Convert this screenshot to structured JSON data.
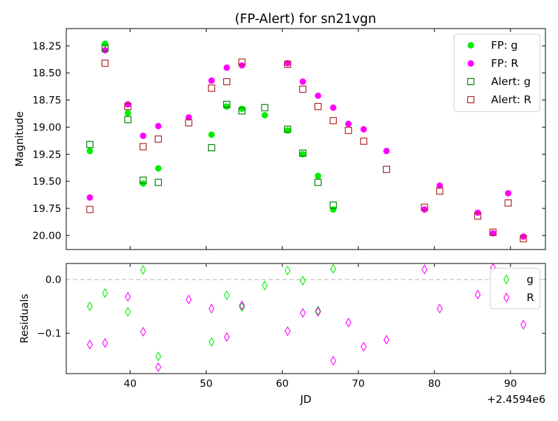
{
  "title": "(FP-Alert) for sn21vgn",
  "chart_data": [
    {
      "type": "scatter",
      "title": "(FP-Alert) for sn21vgn",
      "xlabel": "",
      "ylabel": "Magnitude",
      "ylim": [
        20.13,
        18.09
      ],
      "y_inverted": true,
      "yticks": [
        "18.25",
        "18.50",
        "18.75",
        "19.00",
        "19.25",
        "19.50",
        "19.75",
        "20.00"
      ],
      "yticks_values": [
        18.25,
        18.5,
        18.75,
        19.0,
        19.25,
        19.5,
        19.75,
        20.0
      ],
      "x_offset_label": "+2.4594e6",
      "xlim": [
        31.6,
        94.6
      ],
      "legend": {
        "placement": "top-right",
        "entries": [
          "FP: g",
          "FP: R",
          "Alert: g",
          "Alert: R"
        ]
      },
      "colors": {
        "fp_g": "#00ee00",
        "fp_R": "#ff00ff",
        "alert_g": "#008000",
        "alert_R": "#b22222"
      },
      "series": [
        {
          "name": "FP: g",
          "marker": "circle",
          "x": [
            34.7,
            36.7,
            39.7,
            41.7,
            43.7,
            50.7,
            52.7,
            54.7,
            57.7,
            60.7,
            62.7,
            64.7,
            66.7
          ],
          "y": [
            19.22,
            18.23,
            18.87,
            19.52,
            19.38,
            19.07,
            18.81,
            18.83,
            18.89,
            19.03,
            19.25,
            19.45,
            19.76
          ]
        },
        {
          "name": "FP: R",
          "marker": "circle",
          "x": [
            34.7,
            36.7,
            39.7,
            41.7,
            43.7,
            47.7,
            50.7,
            52.7,
            54.7,
            60.7,
            62.7,
            64.7,
            66.7,
            68.7,
            70.7,
            73.7,
            78.7,
            80.7,
            85.7,
            87.7,
            89.7,
            91.7
          ],
          "y": [
            19.65,
            18.29,
            18.79,
            19.08,
            18.99,
            18.91,
            18.57,
            18.45,
            18.43,
            18.41,
            18.58,
            18.71,
            18.82,
            18.97,
            19.02,
            19.22,
            19.76,
            19.54,
            19.79,
            19.98,
            19.61,
            20.01
          ]
        },
        {
          "name": "Alert: g",
          "marker": "square",
          "x": [
            34.7,
            36.7,
            39.7,
            41.7,
            43.7,
            50.7,
            52.7,
            54.7,
            57.7,
            60.7,
            62.7,
            64.7,
            66.7
          ],
          "y": [
            19.16,
            18.27,
            18.93,
            19.49,
            19.51,
            19.19,
            18.79,
            18.85,
            18.82,
            19.02,
            19.24,
            19.51,
            19.72
          ]
        },
        {
          "name": "Alert: R",
          "marker": "square",
          "x": [
            34.7,
            36.7,
            39.7,
            41.7,
            43.7,
            47.7,
            50.7,
            52.7,
            54.7,
            60.7,
            62.7,
            64.7,
            66.7,
            68.7,
            70.7,
            73.7,
            78.7,
            80.7,
            85.7,
            87.7,
            89.7,
            91.7
          ],
          "y": [
            19.76,
            18.41,
            18.81,
            19.18,
            19.11,
            18.96,
            18.64,
            18.58,
            18.4,
            18.42,
            18.65,
            18.81,
            18.94,
            19.03,
            19.13,
            19.39,
            19.74,
            19.59,
            19.82,
            19.97,
            19.7,
            20.03
          ]
        }
      ]
    },
    {
      "type": "scatter",
      "xlabel": "JD",
      "ylabel": "Residuals",
      "ylim": [
        -0.175,
        0.03
      ],
      "yticks": [
        "0.0",
        "−0.1"
      ],
      "yticks_values": [
        0.0,
        -0.1
      ],
      "xticks": [
        "40",
        "50",
        "60",
        "70",
        "80",
        "90"
      ],
      "xticks_values": [
        40,
        50,
        60,
        70,
        80,
        90
      ],
      "x_offset_label": "+2.4594e6",
      "xlim": [
        31.6,
        94.6
      ],
      "legend": {
        "placement": "top-right",
        "entries": [
          "g",
          "R"
        ]
      },
      "colors": {
        "g": "#00ee00",
        "R": "#ff00ff",
        "zero_line": "#cccccc"
      },
      "series": [
        {
          "name": "g",
          "marker": "diamond",
          "x": [
            34.7,
            36.7,
            39.7,
            41.7,
            43.7,
            50.7,
            52.7,
            54.7,
            57.7,
            60.7,
            62.7,
            64.7,
            66.7
          ],
          "y": [
            -0.05,
            -0.025,
            -0.06,
            0.018,
            -0.143,
            -0.116,
            -0.029,
            -0.051,
            -0.011,
            0.017,
            -0.002,
            -0.058,
            0.02
          ]
        },
        {
          "name": "R",
          "marker": "diamond",
          "x": [
            34.7,
            36.7,
            39.7,
            41.7,
            43.7,
            47.7,
            50.7,
            52.7,
            54.7,
            60.7,
            62.7,
            64.7,
            66.7,
            68.7,
            70.7,
            73.7,
            78.7,
            80.7,
            85.7,
            87.7,
            89.7,
            91.7
          ],
          "y": [
            -0.121,
            -0.118,
            -0.032,
            -0.097,
            -0.163,
            -0.037,
            -0.054,
            -0.107,
            -0.048,
            -0.096,
            -0.062,
            -0.06,
            -0.151,
            -0.08,
            -0.125,
            -0.112,
            0.019,
            -0.054,
            -0.028,
            0.022,
            -0.033,
            -0.084
          ]
        }
      ]
    }
  ]
}
